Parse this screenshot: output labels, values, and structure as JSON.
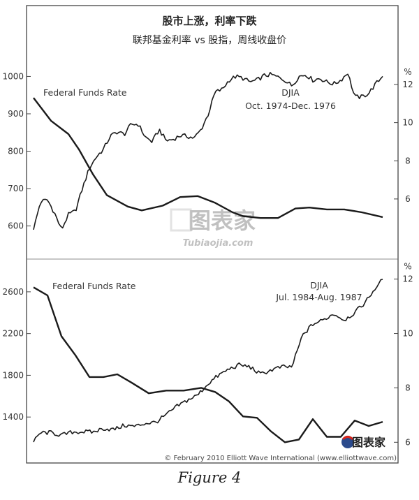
{
  "title": "股市上涨，利率下跌",
  "subtitle": "联邦基金利率 vs 股指，周线收盘价",
  "watermark_text": "图表家",
  "watermark_url": "Tubiaojia.com",
  "logo_text": "图表家",
  "copyright": "© February 2010 Elliott Wave International (www.elliottwave.com)",
  "caption": "Figure 4",
  "chart_data": [
    {
      "type": "line",
      "left_axis": {
        "ticks": [
          600,
          700,
          800,
          900,
          1000
        ],
        "range": [
          560,
          1055
        ]
      },
      "right_axis": {
        "unit": "%",
        "ticks": [
          6,
          8,
          10,
          12
        ],
        "range": [
          3.8,
          13.5
        ]
      },
      "series": [
        {
          "name": "DJIA",
          "label_line2": "Oct. 1974-Dec. 1976",
          "axis": "left",
          "x": [
            0,
            0.02,
            0.04,
            0.06,
            0.08,
            0.1,
            0.12,
            0.14,
            0.16,
            0.18,
            0.2,
            0.22,
            0.24,
            0.26,
            0.28,
            0.3,
            0.32,
            0.34,
            0.36,
            0.38,
            0.4,
            0.42,
            0.44,
            0.46,
            0.48,
            0.5,
            0.52,
            0.54,
            0.56,
            0.58,
            0.6,
            0.62,
            0.64,
            0.66,
            0.68,
            0.7,
            0.72,
            0.74,
            0.76,
            0.78,
            0.8,
            0.82,
            0.84,
            0.86,
            0.88,
            0.9,
            0.92,
            0.94,
            0.96,
            0.98,
            1.0
          ],
          "values": [
            590,
            665,
            670,
            635,
            590,
            630,
            640,
            700,
            755,
            785,
            805,
            840,
            852,
            845,
            872,
            872,
            838,
            825,
            858,
            828,
            832,
            842,
            840,
            835,
            858,
            898,
            958,
            965,
            990,
            1000,
            995,
            985,
            990,
            1002,
            1005,
            998,
            990,
            975,
            1000,
            1005,
            990,
            995,
            985,
            980,
            990,
            1010,
            945,
            945,
            955,
            980,
            1000
          ]
        },
        {
          "name": "Federal Funds Rate",
          "axis": "right",
          "x": [
            0,
            0.05,
            0.1,
            0.13,
            0.17,
            0.21,
            0.27,
            0.31,
            0.37,
            0.42,
            0.47,
            0.52,
            0.57,
            0.6,
            0.65,
            0.7,
            0.75,
            0.79,
            0.84,
            0.89,
            0.94,
            1.0
          ],
          "values": [
            11.3,
            10.1,
            9.4,
            8.6,
            7.3,
            6.2,
            5.6,
            5.4,
            5.65,
            6.1,
            6.15,
            5.8,
            5.3,
            5.1,
            5.0,
            5.0,
            5.5,
            5.55,
            5.45,
            5.45,
            5.3,
            5.05
          ]
        }
      ]
    },
    {
      "type": "line",
      "left_axis": {
        "ticks": [
          1400,
          1800,
          2200,
          2600
        ],
        "range": [
          1080,
          2800
        ]
      },
      "right_axis": {
        "unit": "%",
        "ticks": [
          6,
          8,
          10,
          12
        ],
        "range": [
          5.7,
          12.3
        ]
      },
      "series": [
        {
          "name": "DJIA",
          "label_line2": "Jul. 1984-Aug. 1987",
          "axis": "left",
          "x": [
            0,
            0.02,
            0.05,
            0.08,
            0.11,
            0.14,
            0.17,
            0.2,
            0.23,
            0.26,
            0.29,
            0.32,
            0.35,
            0.38,
            0.41,
            0.44,
            0.47,
            0.5,
            0.53,
            0.56,
            0.59,
            0.62,
            0.65,
            0.68,
            0.71,
            0.74,
            0.77,
            0.8,
            0.83,
            0.86,
            0.89,
            0.92,
            0.95,
            0.98,
            1.0
          ],
          "values": [
            1160,
            1250,
            1250,
            1225,
            1255,
            1260,
            1255,
            1290,
            1280,
            1320,
            1310,
            1340,
            1350,
            1420,
            1500,
            1560,
            1610,
            1720,
            1800,
            1860,
            1900,
            1880,
            1810,
            1850,
            1880,
            1880,
            2180,
            2290,
            2330,
            2390,
            2330,
            2400,
            2500,
            2640,
            2720
          ]
        },
        {
          "name": "Federal Funds Rate",
          "axis": "right",
          "x": [
            0,
            0.04,
            0.08,
            0.12,
            0.16,
            0.2,
            0.24,
            0.28,
            0.33,
            0.38,
            0.43,
            0.48,
            0.52,
            0.56,
            0.6,
            0.64,
            0.68,
            0.72,
            0.76,
            0.8,
            0.84,
            0.88,
            0.92,
            0.96,
            1.0
          ],
          "values": [
            11.7,
            11.4,
            9.9,
            9.2,
            8.4,
            8.4,
            8.5,
            8.2,
            7.8,
            7.9,
            7.9,
            8.0,
            7.85,
            7.5,
            6.95,
            6.9,
            6.4,
            6.0,
            6.1,
            6.85,
            6.2,
            6.2,
            6.8,
            6.6,
            6.75
          ]
        }
      ]
    }
  ]
}
